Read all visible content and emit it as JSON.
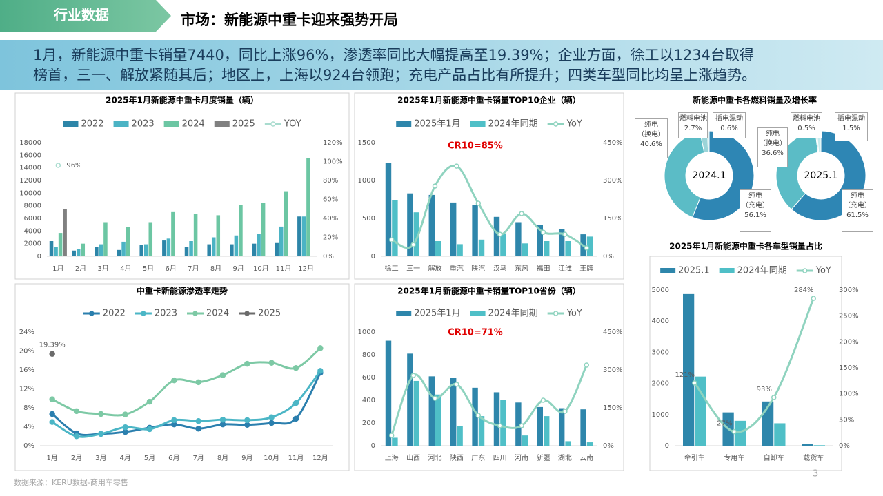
{
  "header": {
    "tab": "行业数据",
    "title": "市场：新能源中重卡迎来强势开局"
  },
  "summary": [
    "1月，新能源中重卡销量7440，同比上涨96%，渗透率同比大幅提高至19.39%；企业方面，徐工以1234台取得",
    "榜首，三一、解放紧随其后；地区上，上海以924台领跑；充电产品占比有所提升；四类车型同比均呈上涨趋势。"
  ],
  "source": "数据来源：KERU数据-商用车零售",
  "page_number": 3,
  "chart_data": [
    {
      "type": "bar",
      "title": "2025年1月新能源中重卡月度销量（辆）",
      "smooth": true,
      "categories": [
        "1月",
        "2月",
        "3月",
        "4月",
        "5月",
        "6月",
        "7月",
        "8月",
        "9月",
        "10月",
        "11月",
        "12月"
      ],
      "series": [
        {
          "name": "2022",
          "color": "#2d85a8",
          "values": [
            2400,
            900,
            1500,
            1000,
            1800,
            2500,
            1500,
            1900,
            1900,
            2000,
            2100,
            6300
          ]
        },
        {
          "name": "2023",
          "color": "#4bb3c4",
          "values": [
            1500,
            1100,
            1900,
            2300,
            1900,
            2800,
            2400,
            3000,
            3300,
            3500,
            4700,
            6300
          ]
        },
        {
          "name": "2024",
          "color": "#6cc6a3",
          "values": [
            3700,
            2000,
            5400,
            4600,
            5400,
            7000,
            6700,
            6500,
            8100,
            8400,
            10300,
            15600
          ]
        },
        {
          "name": "2025",
          "color": "#808080",
          "values": [
            7440,
            null,
            null,
            null,
            null,
            null,
            null,
            null,
            null,
            null,
            null,
            null
          ]
        },
        {
          "name": "YOY",
          "type": "line",
          "axis": "y2",
          "color": "#a9dccf",
          "values": [
            96,
            null,
            null,
            null,
            null,
            null,
            null,
            null,
            null,
            null,
            null,
            null
          ],
          "value_labels": [
            "96%",
            null,
            null,
            null,
            null,
            null,
            null,
            null,
            null,
            null,
            null,
            null
          ]
        }
      ],
      "ylim": [
        0,
        18000
      ],
      "yticks": [
        0,
        2000,
        4000,
        6000,
        8000,
        10000,
        12000,
        14000,
        16000,
        18000
      ],
      "y2lim": [
        0,
        120
      ],
      "y2ticks": [
        {
          "value": 0,
          "label": "0%"
        },
        {
          "value": 20,
          "label": "20%"
        },
        {
          "value": 40,
          "label": "40%"
        },
        {
          "value": 60,
          "label": "60%"
        },
        {
          "value": 80,
          "label": "80%"
        },
        {
          "value": 100,
          "label": "100%"
        },
        {
          "value": 120,
          "label": "120%"
        }
      ]
    },
    {
      "type": "bar",
      "title": "2025年1月新能源中重卡销量TOP10企业（辆）",
      "annotation": "CR10=85%",
      "smooth": true,
      "categories": [
        "徐工",
        "三一",
        "解放",
        "重汽",
        "陕汽",
        "汉马",
        "东风",
        "福田",
        "江淮",
        "王牌"
      ],
      "series": [
        {
          "name": "2025年1月",
          "color": "#2e86ab",
          "values": [
            1234,
            830,
            810,
            710,
            680,
            520,
            450,
            410,
            360,
            290
          ]
        },
        {
          "name": "2024年同期",
          "color": "#4fbfc7",
          "values": [
            740,
            580,
            200,
            160,
            220,
            300,
            170,
            200,
            200,
            260
          ]
        },
        {
          "name": "YoY",
          "type": "line",
          "axis": "y2",
          "color": "#8fd3bf",
          "values": [
            65,
            46,
            278,
            357,
            210,
            87,
            169,
            95,
            87,
            33
          ]
        }
      ],
      "ylim": [
        0,
        1500
      ],
      "yticks": [
        0,
        500,
        1000,
        1500
      ],
      "y2lim": [
        0,
        450
      ],
      "y2ticks": [
        {
          "value": 0,
          "label": "0%"
        },
        {
          "value": 150,
          "label": "150%"
        },
        {
          "value": 300,
          "label": "300%"
        },
        {
          "value": 450,
          "label": "450%"
        }
      ]
    },
    {
      "type": "line",
      "title": "中重卡新能源渗透率走势",
      "smooth": true,
      "categories": [
        "1月",
        "2月",
        "3月",
        "4月",
        "5月",
        "6月",
        "7月",
        "8月",
        "9月",
        "10月",
        "11月",
        "12月"
      ],
      "series": [
        {
          "name": "2022",
          "color": "#2b7fae",
          "values": [
            6.7,
            2.6,
            2.5,
            2.9,
            3.8,
            4.5,
            3.6,
            4.5,
            4.4,
            4.8,
            5.7,
            15.4
          ]
        },
        {
          "name": "2023",
          "color": "#4bb6c6",
          "values": [
            5.0,
            2.0,
            2.5,
            3.9,
            3.5,
            5.4,
            5.2,
            5.5,
            5.4,
            6.0,
            9.0,
            15.8
          ]
        },
        {
          "name": "2024",
          "color": "#7dc9a5",
          "values": [
            9.8,
            7.3,
            6.7,
            6.6,
            9.3,
            13.8,
            13.4,
            14.9,
            17.3,
            17.5,
            16.4,
            20.6
          ]
        },
        {
          "name": "2025",
          "color": "#6b6b6b",
          "values": [
            19.39,
            null,
            null,
            null,
            null,
            null,
            null,
            null,
            null,
            null,
            null,
            null
          ],
          "value_labels": [
            "19.39%",
            null,
            null,
            null,
            null,
            null,
            null,
            null,
            null,
            null,
            null,
            null
          ]
        }
      ],
      "ylim": [
        0,
        24
      ],
      "yticks": [
        {
          "value": 0,
          "label": "0%"
        },
        {
          "value": 4,
          "label": "4%"
        },
        {
          "value": 8,
          "label": "8%"
        },
        {
          "value": 12,
          "label": "12%"
        },
        {
          "value": 16,
          "label": "16%"
        },
        {
          "value": 20,
          "label": "20%"
        },
        {
          "value": 24,
          "label": "24%"
        }
      ]
    },
    {
      "type": "bar",
      "title": "2025年1月新能源中重卡销量TOP10省份（辆）",
      "annotation": "CR10=71%",
      "smooth": true,
      "categories": [
        "上海",
        "山西",
        "河北",
        "陕西",
        "广东",
        "四川",
        "河南",
        "新疆",
        "湖北",
        "云南"
      ],
      "series": [
        {
          "name": "2025年1月",
          "color": "#2e86ab",
          "values": [
            924,
            810,
            610,
            600,
            510,
            470,
            380,
            340,
            330,
            320
          ]
        },
        {
          "name": "2024年同期",
          "color": "#4fbfc7",
          "values": [
            70,
            570,
            450,
            170,
            260,
            400,
            90,
            260,
            40,
            30
          ]
        },
        {
          "name": "YoY",
          "type": "line",
          "axis": "y2",
          "color": "#8fd3bf",
          "values": [
            41,
            278,
            188,
            243,
            120,
            79,
            79,
            180,
            136,
            319
          ]
        }
      ],
      "ylim": [
        0,
        1000
      ],
      "yticks": [
        0,
        200,
        400,
        600,
        800,
        1000
      ],
      "y2lim": [
        0,
        450
      ],
      "y2ticks": [
        {
          "value": 0,
          "label": "0%"
        },
        {
          "value": 150,
          "label": "150%"
        },
        {
          "value": 300,
          "label": "300%"
        },
        {
          "value": 450,
          "label": "450%"
        }
      ]
    },
    {
      "type": "pie",
      "title": "新能源中重卡各燃料销量及增长率",
      "categories": [
        "纯电（充电）",
        "纯电（换电）",
        "燃料电池",
        "插电混动"
      ],
      "colors": [
        "#2e86b4",
        "#5bbcc6",
        "#9bd4d8",
        "#c9ecee"
      ],
      "pies": [
        {
          "name": "2024.1",
          "values": [
            56.1,
            40.6,
            2.7,
            0.6
          ],
          "value_labels": [
            "56.1%",
            "40.6%",
            "2.7%",
            "0.6%"
          ]
        },
        {
          "name": "2025.1",
          "values": [
            61.5,
            36.6,
            0.5,
            1.5
          ],
          "value_labels": [
            "61.5%",
            "36.6%",
            "0.5%",
            "1.5%"
          ]
        }
      ]
    },
    {
      "type": "bar",
      "title": "2025年1月新能源中重卡各车型销量占比",
      "smooth": true,
      "categories": [
        "牵引车",
        "专用车",
        "自卸车",
        "载货车"
      ],
      "series": [
        {
          "name": "2025.1",
          "color": "#2e86ab",
          "values": [
            4870,
            1070,
            1420,
            60
          ]
        },
        {
          "name": "2024年同期",
          "color": "#4fbfc7",
          "values": [
            2220,
            800,
            720,
            16
          ]
        },
        {
          "name": "YoY",
          "type": "line",
          "axis": "y2",
          "color": "#8fd3bf",
          "values": [
            121,
            27,
            93,
            284
          ],
          "value_labels": [
            "121%",
            "27%",
            "93%",
            "284%"
          ]
        }
      ],
      "ylim": [
        0,
        5000
      ],
      "yticks": [
        0,
        1000,
        2000,
        3000,
        4000,
        5000
      ],
      "y2lim": [
        0,
        300
      ],
      "y2ticks": [
        {
          "value": 0,
          "label": "0%"
        },
        {
          "value": 50,
          "label": "50%"
        },
        {
          "value": 100,
          "label": "100%"
        },
        {
          "value": 150,
          "label": "150%"
        },
        {
          "value": 200,
          "label": "200%"
        },
        {
          "value": 250,
          "label": "250%"
        },
        {
          "value": 300,
          "label": "300%"
        }
      ]
    }
  ]
}
